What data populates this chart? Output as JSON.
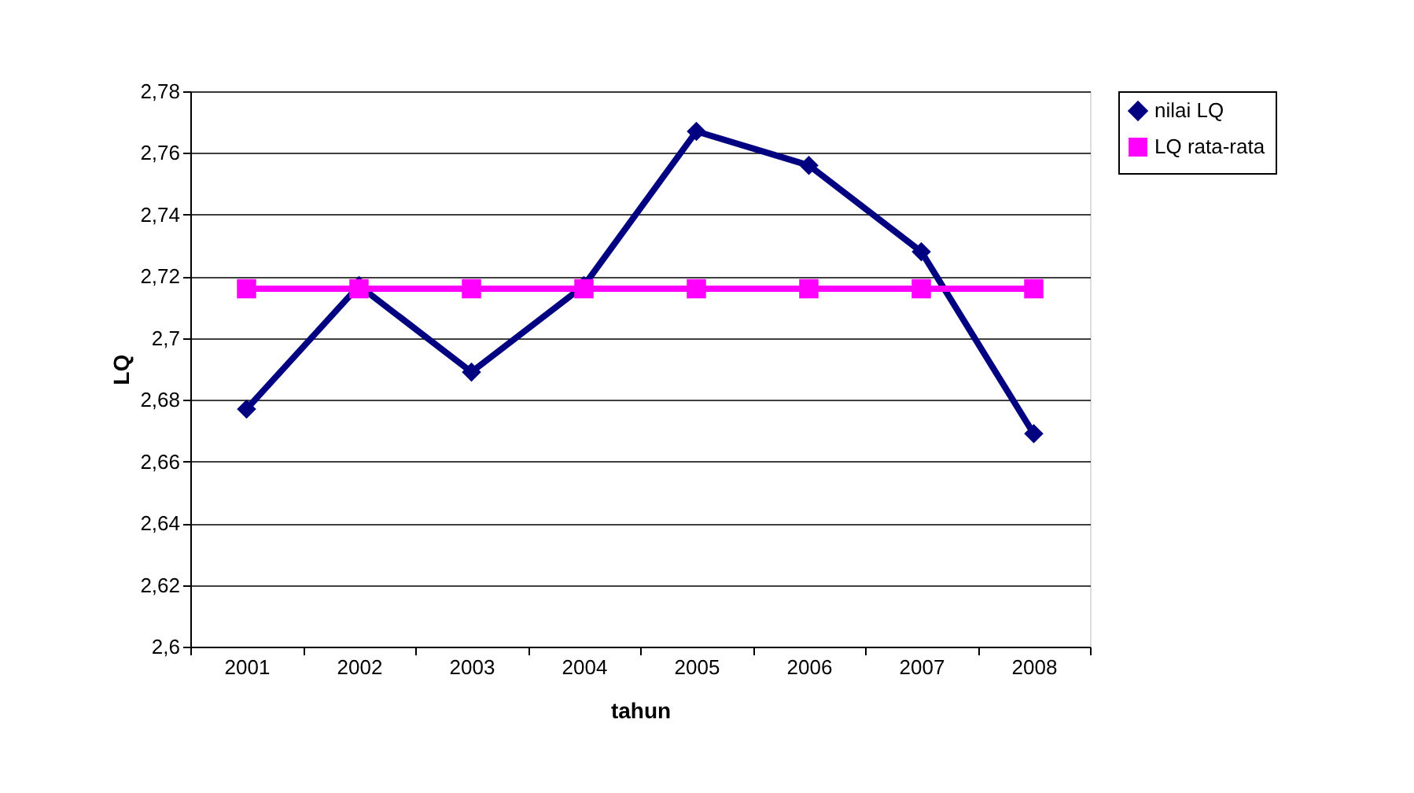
{
  "chart_data": {
    "type": "line",
    "xlabel": "tahun",
    "ylabel": "LQ",
    "categories": [
      "2001",
      "2002",
      "2003",
      "2004",
      "2005",
      "2006",
      "2007",
      "2008"
    ],
    "series": [
      {
        "name": "nilai LQ",
        "color": "#000080",
        "marker": "diamond",
        "values": [
          2.677,
          2.717,
          2.689,
          2.717,
          2.767,
          2.756,
          2.728,
          2.669
        ]
      },
      {
        "name": "LQ rata-rata",
        "color": "#ff00ff",
        "marker": "square",
        "values": [
          2.716,
          2.716,
          2.716,
          2.716,
          2.716,
          2.716,
          2.716,
          2.716
        ]
      }
    ],
    "ylim": [
      2.6,
      2.78
    ],
    "yticks": [
      {
        "value": 2.6,
        "label": "2,6"
      },
      {
        "value": 2.62,
        "label": "2,62"
      },
      {
        "value": 2.64,
        "label": "2,64"
      },
      {
        "value": 2.66,
        "label": "2,66"
      },
      {
        "value": 2.68,
        "label": "2,68"
      },
      {
        "value": 2.7,
        "label": "2,7"
      },
      {
        "value": 2.72,
        "label": "2,72"
      },
      {
        "value": 2.74,
        "label": "2,74"
      },
      {
        "value": 2.76,
        "label": "2,76"
      },
      {
        "value": 2.78,
        "label": "2,78"
      }
    ],
    "grid": "y",
    "legend": "right",
    "line_style": "solid"
  }
}
